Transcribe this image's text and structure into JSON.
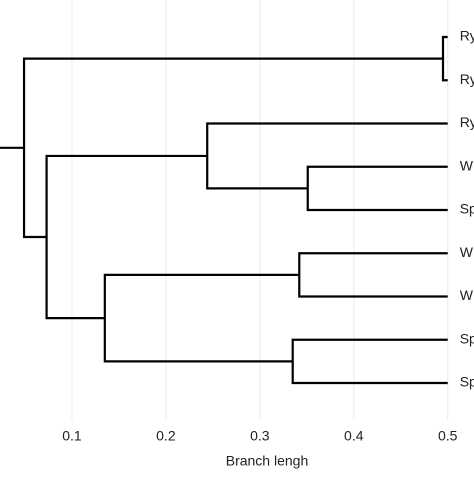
{
  "chart_data": {
    "type": "dendrogram",
    "x_label": "Branch lengh",
    "leaves": [
      "Ry",
      "Ry",
      "Ry",
      "W",
      "Sp",
      "W",
      "W",
      "Sp",
      "Sp"
    ],
    "leaf_height": 0.5,
    "nodes": [
      {
        "children": [
          0,
          1
        ],
        "height": 0.495
      },
      {
        "children": [
          3,
          4
        ],
        "height": 0.351
      },
      {
        "children": [
          2,
          10
        ],
        "height": 0.244
      },
      {
        "children": [
          5,
          6
        ],
        "height": 0.342
      },
      {
        "children": [
          7,
          8
        ],
        "height": 0.335
      },
      {
        "children": [
          12,
          13
        ],
        "height": 0.135
      },
      {
        "children": [
          11,
          14
        ],
        "height": 0.073
      },
      {
        "children": [
          9,
          15
        ],
        "height": 0.049
      }
    ],
    "xlim": [
      0.0234,
      0.528
    ],
    "xticks": [
      0.1,
      0.2,
      0.3,
      0.4,
      0.5
    ],
    "grid": true
  }
}
